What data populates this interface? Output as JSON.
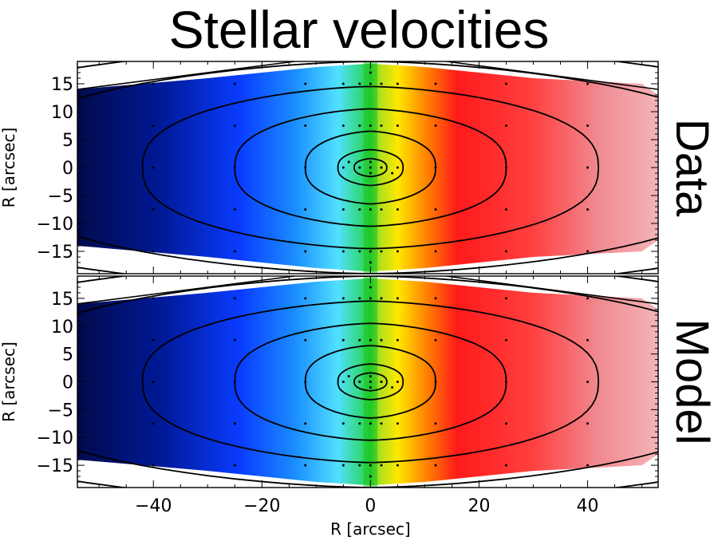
{
  "title": "Stellar velocities",
  "chart_data": [
    {
      "type": "heatmap",
      "panel_label": "Data",
      "xlabel": "R [arcsec]",
      "ylabel": "R [arcsec]",
      "xlim": [
        -54,
        53
      ],
      "ylim": [
        -19,
        19
      ],
      "xticks": [
        -40,
        -20,
        0,
        20,
        40
      ],
      "yticks": [
        15,
        10,
        5,
        0,
        -5,
        -10,
        -15
      ],
      "colormap": "jet (blue = approaching, red = receding)",
      "zero_velocity_x": 0,
      "contours": "isophotes, concentric ellipses centred at (0, 0)"
    },
    {
      "type": "heatmap",
      "panel_label": "Model",
      "xlabel": "R [arcsec]",
      "ylabel": "R [arcsec]",
      "xlim": [
        -54,
        53
      ],
      "ylim": [
        -19,
        19
      ],
      "xticks": [
        -40,
        -20,
        0,
        20,
        40
      ],
      "yticks": [
        15,
        10,
        5,
        0,
        -5,
        -10,
        -15
      ],
      "colormap": "jet (blue = approaching, red = receding)",
      "zero_velocity_x": 0,
      "contours": "isophotes, concentric ellipses centred at (0, 0)"
    }
  ],
  "tick_text": {
    "x": [
      "−40",
      "−20",
      "0",
      "20",
      "40"
    ],
    "y": [
      "15",
      "10",
      "5",
      "0",
      "−5",
      "−10",
      "−15"
    ]
  },
  "colors": {
    "blue_dark": "#000a4a",
    "blue": "#0a3cff",
    "cyan": "#50e0ff",
    "green": "#20c828",
    "yellow": "#ffe800",
    "orange": "#ff8800",
    "red": "#ff1a1a",
    "pink": "#f4b4b8"
  }
}
